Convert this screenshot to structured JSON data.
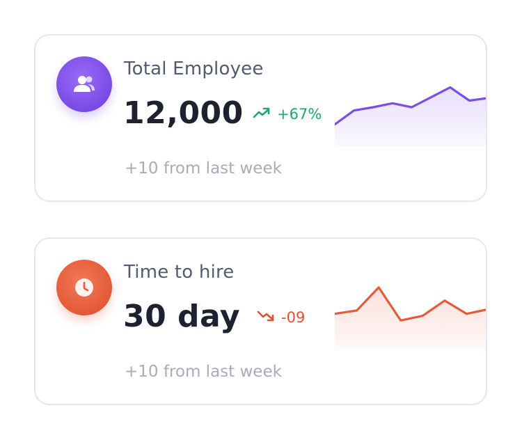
{
  "cards": [
    {
      "icon": "users-icon",
      "title": "Total Employee",
      "value": "12,000",
      "change": "+67%",
      "trend": "up",
      "footnote": "+10 from last week",
      "accent": "#7b4de8",
      "change_color": "#1fa66f",
      "sparkline": [
        34,
        55,
        60,
        66,
        60,
        75,
        90,
        70,
        74
      ]
    },
    {
      "icon": "clock-icon",
      "title": "Time to hire",
      "value": "30 day",
      "change": "-09",
      "trend": "down",
      "footnote": "+10 from last week",
      "accent": "#e55b39",
      "change_color": "#e0512f",
      "sparkline": [
        55,
        60,
        95,
        45,
        52,
        75,
        55,
        62
      ]
    }
  ]
}
